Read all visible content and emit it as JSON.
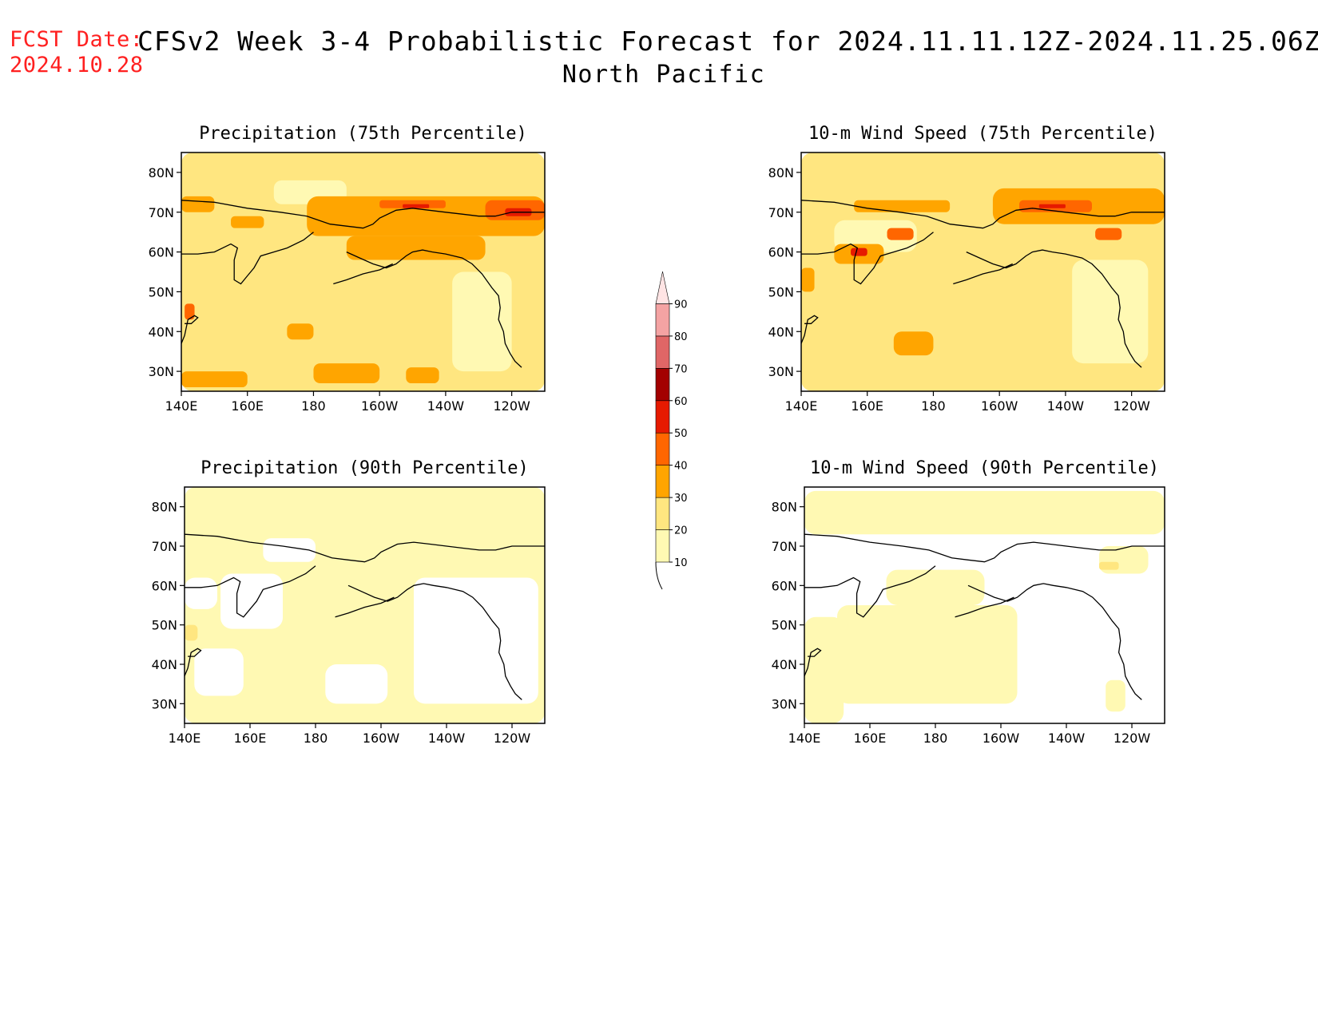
{
  "header": {
    "fcst_label": "FCST Date:",
    "fcst_date": "2024.10.28",
    "title": "CFSv2 Week 3-4 Probabilistic Forecast for 2024.11.11.12Z-2024.11.25.06Z",
    "region": "North Pacific"
  },
  "colors": {
    "bins": [
      "#fff9b3",
      "#ffe680",
      "#ffa500",
      "#ff6600",
      "#e61a00",
      "#a30000",
      "#e06666",
      "#f4a3a3",
      "#ffe4e4"
    ],
    "coast": "#000000"
  },
  "colorbar": {
    "levels": [
      "10",
      "20",
      "30",
      "40",
      "50",
      "60",
      "70",
      "80",
      "90"
    ]
  },
  "axes": {
    "x_ticks": [
      "140E",
      "160E",
      "180",
      "160W",
      "140W",
      "120W"
    ],
    "y_ticks": [
      "80N",
      "70N",
      "60N",
      "50N",
      "40N",
      "30N"
    ]
  },
  "chart_data": [
    {
      "type": "heatmap",
      "title": "Precipitation (75th Percentile)",
      "lon_range": [
        "140E",
        "110W"
      ],
      "lat_range": [
        "25N",
        "85N"
      ],
      "fields": [
        {
          "bin": 1,
          "lon": [
            140,
            250
          ],
          "lat": [
            25,
            85
          ]
        },
        {
          "bin": 0,
          "lon": [
            168,
            190
          ],
          "lat": [
            72,
            78
          ]
        },
        {
          "bin": 0,
          "lon": [
            222,
            240
          ],
          "lat": [
            30,
            55
          ]
        },
        {
          "bin": 2,
          "lon": [
            140,
            150
          ],
          "lat": [
            70,
            74
          ]
        },
        {
          "bin": 2,
          "lon": [
            155,
            165
          ],
          "lat": [
            66,
            69
          ]
        },
        {
          "bin": 2,
          "lon": [
            178,
            250
          ],
          "lat": [
            64,
            74
          ]
        },
        {
          "bin": 2,
          "lon": [
            190,
            232
          ],
          "lat": [
            58,
            64
          ]
        },
        {
          "bin": 2,
          "lon": [
            140,
            160
          ],
          "lat": [
            26,
            30
          ]
        },
        {
          "bin": 2,
          "lon": [
            180,
            200
          ],
          "lat": [
            27,
            32
          ]
        },
        {
          "bin": 2,
          "lon": [
            208,
            218
          ],
          "lat": [
            27,
            31
          ]
        },
        {
          "bin": 2,
          "lon": [
            172,
            180
          ],
          "lat": [
            38,
            42
          ]
        },
        {
          "bin": 3,
          "lon": [
            200,
            220
          ],
          "lat": [
            71,
            73
          ]
        },
        {
          "bin": 3,
          "lon": [
            232,
            250
          ],
          "lat": [
            68,
            73
          ]
        },
        {
          "bin": 4,
          "lon": [
            207,
            215
          ],
          "lat": [
            71,
            72
          ]
        },
        {
          "bin": 4,
          "lon": [
            238,
            246
          ],
          "lat": [
            69,
            71
          ]
        },
        {
          "bin": 3,
          "lon": [
            141,
            144
          ],
          "lat": [
            43,
            47
          ]
        }
      ]
    },
    {
      "type": "heatmap",
      "title": "10-m Wind Speed (75th Percentile)",
      "lon_range": [
        "140E",
        "110W"
      ],
      "lat_range": [
        "25N",
        "85N"
      ],
      "fields": [
        {
          "bin": 1,
          "lon": [
            140,
            250
          ],
          "lat": [
            25,
            85
          ]
        },
        {
          "bin": 0,
          "lon": [
            150,
            175
          ],
          "lat": [
            60,
            68
          ]
        },
        {
          "bin": 0,
          "lon": [
            222,
            245
          ],
          "lat": [
            32,
            58
          ]
        },
        {
          "bin": 2,
          "lon": [
            156,
            185
          ],
          "lat": [
            70,
            73
          ]
        },
        {
          "bin": 2,
          "lon": [
            198,
            250
          ],
          "lat": [
            67,
            76
          ]
        },
        {
          "bin": 2,
          "lon": [
            168,
            180
          ],
          "lat": [
            34,
            40
          ]
        },
        {
          "bin": 2,
          "lon": [
            150,
            165
          ],
          "lat": [
            57,
            62
          ]
        },
        {
          "bin": 3,
          "lon": [
            206,
            228
          ],
          "lat": [
            70,
            73
          ]
        },
        {
          "bin": 3,
          "lon": [
            166,
            174
          ],
          "lat": [
            63,
            66
          ]
        },
        {
          "bin": 3,
          "lon": [
            229,
            237
          ],
          "lat": [
            63,
            66
          ]
        },
        {
          "bin": 4,
          "lon": [
            155,
            160
          ],
          "lat": [
            59,
            61
          ]
        },
        {
          "bin": 4,
          "lon": [
            212,
            220
          ],
          "lat": [
            71,
            72
          ]
        },
        {
          "bin": 2,
          "lon": [
            140,
            144
          ],
          "lat": [
            50,
            56
          ]
        }
      ]
    },
    {
      "type": "heatmap",
      "title": "Precipitation (90th Percentile)",
      "lon_range": [
        "140E",
        "110W"
      ],
      "lat_range": [
        "25N",
        "85N"
      ],
      "fields": [
        {
          "bin": 0,
          "lon": [
            140,
            250
          ],
          "lat": [
            25,
            85
          ]
        },
        {
          "bin": -1,
          "lon": [
            151,
            170
          ],
          "lat": [
            49,
            63
          ]
        },
        {
          "bin": -1,
          "lon": [
            210,
            248
          ],
          "lat": [
            30,
            62
          ]
        },
        {
          "bin": -1,
          "lon": [
            164,
            180
          ],
          "lat": [
            66,
            72
          ]
        },
        {
          "bin": -1,
          "lon": [
            143,
            158
          ],
          "lat": [
            32,
            44
          ]
        },
        {
          "bin": -1,
          "lon": [
            183,
            202
          ],
          "lat": [
            30,
            40
          ]
        },
        {
          "bin": -1,
          "lon": [
            140,
            150
          ],
          "lat": [
            54,
            62
          ]
        },
        {
          "bin": 1,
          "lon": [
            140,
            144
          ],
          "lat": [
            46,
            50
          ]
        }
      ]
    },
    {
      "type": "heatmap",
      "title": "10-m Wind Speed (90th Percentile)",
      "lon_range": [
        "140E",
        "110W"
      ],
      "lat_range": [
        "25N",
        "85N"
      ],
      "fields": [
        {
          "bin": -1,
          "lon": [
            140,
            250
          ],
          "lat": [
            25,
            85
          ]
        },
        {
          "bin": 0,
          "lon": [
            140,
            250
          ],
          "lat": [
            73,
            84
          ]
        },
        {
          "bin": 0,
          "lon": [
            150,
            205
          ],
          "lat": [
            30,
            55
          ]
        },
        {
          "bin": 0,
          "lon": [
            165,
            195
          ],
          "lat": [
            55,
            64
          ]
        },
        {
          "bin": 0,
          "lon": [
            140,
            152
          ],
          "lat": [
            25,
            52
          ]
        },
        {
          "bin": 0,
          "lon": [
            230,
            245
          ],
          "lat": [
            63,
            70
          ]
        },
        {
          "bin": 0,
          "lon": [
            232,
            238
          ],
          "lat": [
            28,
            36
          ]
        },
        {
          "bin": 1,
          "lon": [
            230,
            236
          ],
          "lat": [
            64,
            66
          ]
        }
      ]
    }
  ]
}
